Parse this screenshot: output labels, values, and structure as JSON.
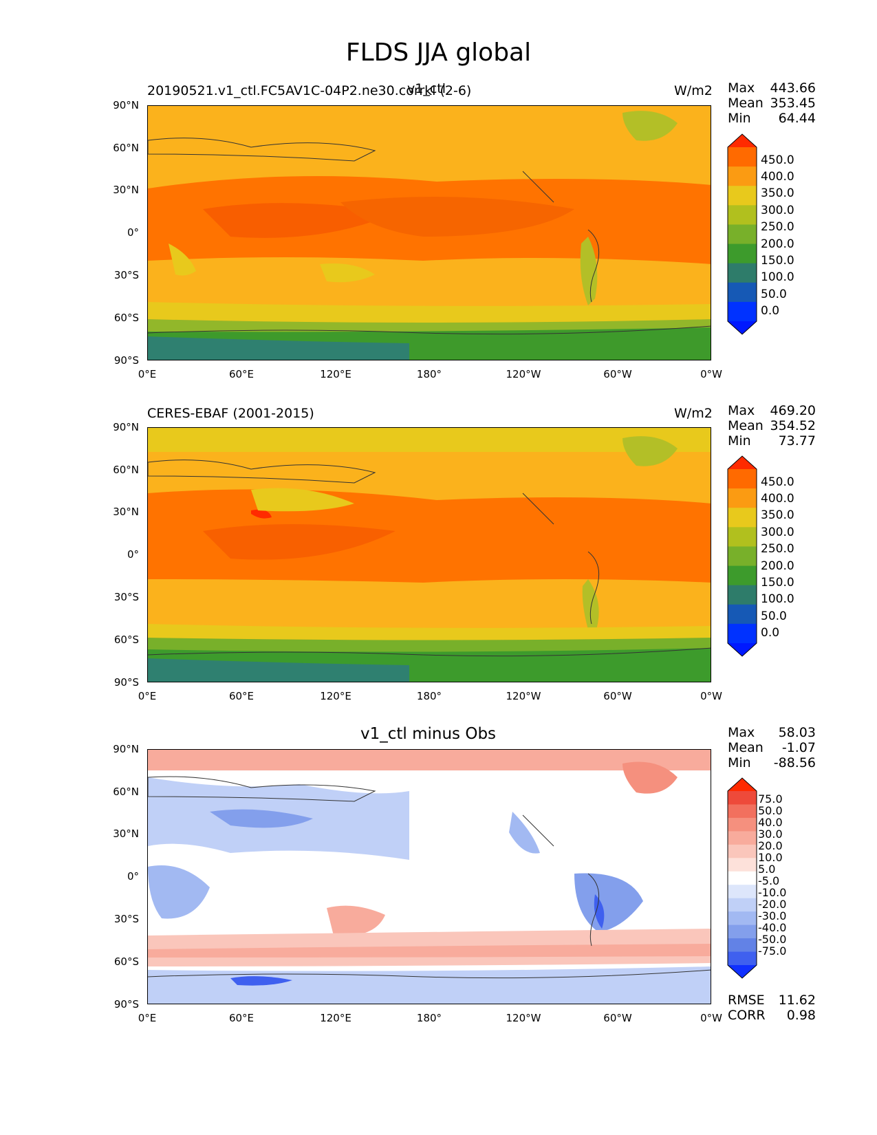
{
  "figure_title": "FLDS JJA global",
  "panels": [
    {
      "left_label": "20190521.v1_ctl.FC5AV1C-04P2.ne30.corrkl (2-6)",
      "center_label": "v1_ctl",
      "units": "W/m2",
      "stats": {
        "max_label": "Max",
        "max": "443.66",
        "mean_label": "Mean",
        "mean": "353.45",
        "min_label": "Min",
        "min": "64.44"
      }
    },
    {
      "left_label": "CERES-EBAF (2001-2015)",
      "units": "W/m2",
      "stats": {
        "max_label": "Max",
        "max": "469.20",
        "mean_label": "Mean",
        "mean": "354.52",
        "min_label": "Min",
        "min": "73.77"
      }
    },
    {
      "center_label": "v1_ctl minus Obs",
      "stats": {
        "max_label": "Max",
        "max": "58.03",
        "mean_label": "Mean",
        "mean": "-1.07",
        "min_label": "Min",
        "min": "-88.56"
      },
      "rmse_label": "RMSE",
      "rmse": "11.62",
      "corr_label": "CORR",
      "corr": "0.98"
    }
  ],
  "lat_ticks": [
    "90°N",
    "60°N",
    "30°N",
    "0°",
    "30°S",
    "60°S",
    "90°S"
  ],
  "lon_ticks": [
    "0°E",
    "60°E",
    "120°E",
    "180°",
    "120°W",
    "60°W",
    "0°W"
  ],
  "colorbar_field": {
    "labels": [
      "450.0",
      "400.0",
      "350.0",
      "300.0",
      "250.0",
      "200.0",
      "150.0",
      "100.0",
      "50.0",
      "0.0"
    ],
    "colors": [
      "#ff2a00",
      "#ff6a00",
      "#fb9b12",
      "#e8c91c",
      "#b1c01e",
      "#78b02a",
      "#3d9b2c",
      "#2e7c6a",
      "#1659b5",
      "#0032ff",
      "#0019ff"
    ]
  },
  "colorbar_diff": {
    "labels": [
      "75.0",
      "50.0",
      "40.0",
      "30.0",
      "20.0",
      "10.0",
      "5.0",
      "-5.0",
      "-10.0",
      "-20.0",
      "-30.0",
      "-40.0",
      "-50.0",
      "-75.0"
    ],
    "colors": [
      "#ff2a00",
      "#ee4a3a",
      "#f2705e",
      "#f5907e",
      "#f8ab9c",
      "#fac6bb",
      "#fde1da",
      "#ffffff",
      "#dde6fb",
      "#c0d0f7",
      "#a2b9f2",
      "#839fec",
      "#6282e6",
      "#3f60ef",
      "#1030ff"
    ]
  }
}
